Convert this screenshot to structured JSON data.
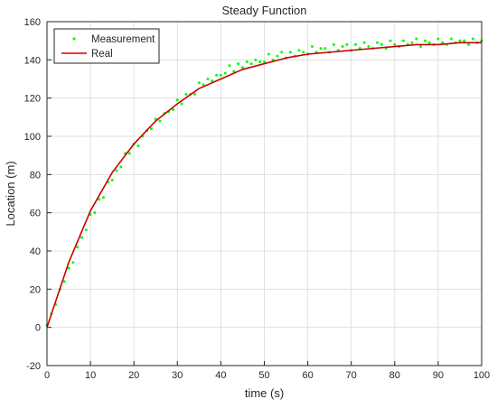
{
  "chart_data": {
    "type": "scatter",
    "title": "Steady Function",
    "xlabel": "time (s)",
    "ylabel": "Location (m)",
    "xlim": [
      0,
      100
    ],
    "ylim": [
      -20,
      160
    ],
    "xticks": [
      0,
      10,
      20,
      30,
      40,
      50,
      60,
      70,
      80,
      90,
      100
    ],
    "yticks": [
      -20,
      0,
      20,
      40,
      60,
      80,
      100,
      120,
      140,
      160
    ],
    "grid": true,
    "legend_position": "top-left",
    "colors": {
      "measurement": "#00ff00",
      "real": "#cc0000",
      "axis": "#262626",
      "grid": "#e0e0e0"
    },
    "series": [
      {
        "name": "Measurement",
        "kind": "scatter",
        "x": [
          0,
          1,
          2,
          3,
          4,
          5,
          6,
          7,
          8,
          9,
          10,
          11,
          12,
          13,
          14,
          15,
          16,
          17,
          18,
          19,
          20,
          21,
          22,
          23,
          24,
          25,
          26,
          27,
          28,
          29,
          30,
          31,
          32,
          33,
          34,
          35,
          36,
          37,
          38,
          39,
          40,
          41,
          42,
          43,
          44,
          45,
          46,
          47,
          48,
          49,
          50,
          51,
          52,
          53,
          54,
          55,
          56,
          57,
          58,
          59,
          60,
          61,
          62,
          63,
          64,
          65,
          66,
          67,
          68,
          69,
          70,
          71,
          72,
          73,
          74,
          75,
          76,
          77,
          78,
          79,
          80,
          81,
          82,
          83,
          84,
          85,
          86,
          87,
          88,
          89,
          90,
          91,
          92,
          93,
          94,
          95,
          96,
          97,
          98,
          99,
          100
        ],
        "y": [
          1,
          7,
          12,
          20,
          24,
          31,
          34,
          42,
          47,
          51,
          59,
          60,
          67,
          68,
          76,
          77,
          82,
          84,
          91,
          91,
          96,
          95,
          100,
          103,
          104,
          109,
          108,
          112,
          113,
          114,
          119,
          117,
          122,
          122,
          122,
          128,
          127,
          130,
          129,
          132,
          132,
          133,
          137,
          134,
          138,
          136,
          139,
          138,
          140,
          139,
          139,
          143,
          140,
          142,
          144,
          141,
          144,
          142,
          145,
          144,
          143,
          147,
          144,
          146,
          146,
          144,
          148,
          145,
          147,
          148,
          145,
          148,
          146,
          149,
          147,
          146,
          149,
          148,
          146,
          150,
          148,
          147,
          150,
          148,
          149,
          151,
          147,
          150,
          149,
          148,
          151,
          149,
          148,
          151,
          149,
          150,
          150,
          148,
          151,
          149,
          150
        ]
      },
      {
        "name": "Real",
        "kind": "line",
        "x": [
          0,
          5,
          10,
          15,
          20,
          25,
          30,
          35,
          40,
          45,
          50,
          55,
          60,
          65,
          70,
          75,
          80,
          85,
          90,
          95,
          100
        ],
        "y": [
          0,
          34,
          61,
          81,
          96,
          108,
          117,
          125,
          130,
          135,
          138,
          141,
          143,
          144,
          145,
          146,
          147,
          148,
          148,
          149,
          149
        ]
      }
    ]
  }
}
